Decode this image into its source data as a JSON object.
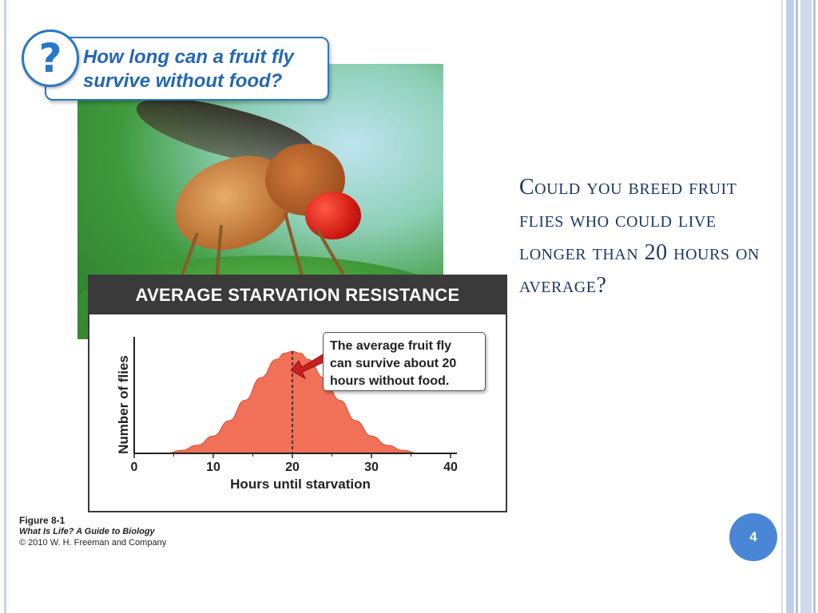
{
  "slide": {
    "side_question": "Could you breed fruit flies who could live longer than 20 hours on average?",
    "page_number": "4"
  },
  "banner": {
    "icon": "question-icon",
    "line1": "How long can a fruit fly",
    "line2": "survive without food?"
  },
  "figure": {
    "header": "AVERAGE STARVATION RESISTANCE",
    "callout_lines": [
      "The average fruit fly",
      "can survive about 20",
      "hours without food."
    ]
  },
  "caption": {
    "figure_label": "Figure 8-1",
    "book": "What Is Life? A Guide to Biology",
    "copyright": "© 2010 W. H. Freeman and Company"
  },
  "colors": {
    "accent_blue": "#2a78c4",
    "curve_fill": "#f07058",
    "title_text": "#1f3864",
    "page_badge": "#4a86d6"
  },
  "chart_data": {
    "type": "area",
    "title": "AVERAGE STARVATION RESISTANCE",
    "xlabel": "Hours until starvation",
    "ylabel": "Number of flies",
    "xlim": [
      0,
      40
    ],
    "ylim": [
      0,
      1
    ],
    "xticks": [
      0,
      10,
      20,
      30,
      40
    ],
    "mean_marker": 20,
    "annotation": "The average fruit fly can survive about 20 hours without food.",
    "x": [
      4,
      6,
      8,
      10,
      12,
      14,
      16,
      18,
      19,
      20,
      21,
      22,
      24,
      26,
      28,
      30,
      32,
      34,
      36
    ],
    "y": [
      0.0,
      0.03,
      0.08,
      0.17,
      0.32,
      0.52,
      0.74,
      0.92,
      0.98,
      1.0,
      0.98,
      0.92,
      0.74,
      0.52,
      0.32,
      0.17,
      0.08,
      0.03,
      0.0
    ]
  }
}
